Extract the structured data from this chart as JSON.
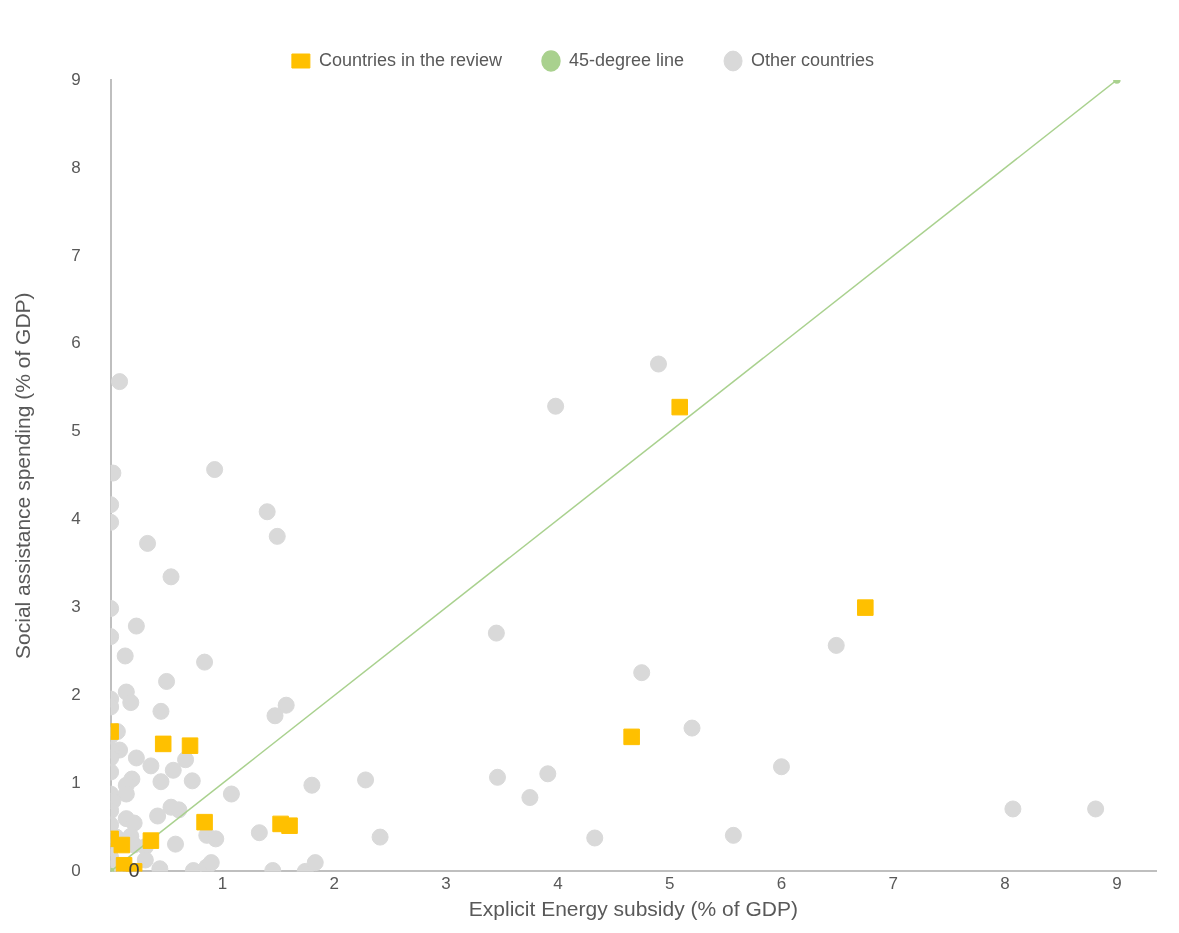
{
  "chart_data": {
    "type": "scatter",
    "xlabel": "Explicit Energy subsidy (% of GDP)",
    "ylabel": "Social assistance spending (% of GDP)",
    "xlim": [
      0,
      9.35
    ],
    "ylim": [
      0,
      9
    ],
    "xticks": [
      1,
      2,
      3,
      4,
      5,
      6,
      7,
      8,
      9
    ],
    "yticks": [
      0,
      1,
      2,
      3,
      4,
      5,
      6,
      7,
      8,
      9
    ],
    "grid": false,
    "legend": "top",
    "annotations": [
      {
        "text": "0",
        "x": 0.21,
        "y": 0
      }
    ],
    "series": [
      {
        "name": "Countries in the review",
        "type": "scatter",
        "marker": "square",
        "color": "#ffc000",
        "x": [
          5.09,
          6.75,
          4.66,
          0.47,
          0.71,
          0.84,
          1.52,
          1.6,
          0.36,
          0,
          0,
          0.1,
          0.21,
          0.12
        ],
        "values": [
          5.28,
          3.0,
          1.53,
          1.45,
          1.43,
          0.56,
          0.54,
          0.52,
          0.35,
          1.59,
          0.37,
          0.3,
          0.0,
          0.07
        ]
      },
      {
        "name": "45-degree line",
        "type": "line",
        "marker": "circle",
        "line_style": "solid",
        "color": "#a9d18e",
        "x": [
          0,
          9
        ],
        "values": [
          0,
          9
        ]
      },
      {
        "name": "Other countries",
        "type": "scatter",
        "marker": "circle",
        "color": "#d9d9d9",
        "x": [
          0.08,
          0.02,
          0,
          0,
          0.33,
          0.54,
          0.93,
          1.4,
          1.49,
          0,
          0,
          0.23,
          0.13,
          0.84,
          0.5,
          0.14,
          0.18,
          0,
          0,
          0.45,
          1.57,
          1.47,
          0.06,
          0,
          0.08,
          0,
          0,
          0,
          0.23,
          0.36,
          0.45,
          0.73,
          0.67,
          0.56,
          0.19,
          0.14,
          0.14,
          0,
          0.02,
          0,
          1.08,
          1.8,
          0.54,
          0.61,
          0.42,
          0.14,
          0.21,
          0,
          0.05,
          0.18,
          0.21,
          0.31,
          0.58,
          0.86,
          0.94,
          1.33,
          0.31,
          0,
          0,
          0.06,
          0.44,
          0.74,
          0.86,
          0.9,
          1.45,
          1.74,
          1.83,
          3.98,
          4.9,
          3.45,
          3.46,
          3.91,
          3.75,
          2.28,
          2.41,
          4.75,
          4.33,
          5.2,
          5.57,
          6.0,
          6.49,
          8.07,
          8.81
        ],
        "values": [
          5.57,
          4.53,
          4.17,
          3.97,
          3.73,
          3.35,
          4.57,
          4.09,
          3.81,
          2.99,
          2.67,
          2.79,
          2.45,
          2.38,
          2.16,
          2.04,
          1.92,
          1.96,
          1.87,
          1.82,
          1.89,
          1.77,
          1.59,
          1.54,
          1.38,
          1.38,
          1.29,
          1.13,
          1.29,
          1.2,
          1.02,
          1.03,
          1.27,
          1.15,
          1.05,
          0.98,
          0.88,
          0.88,
          0.8,
          0.69,
          0.88,
          0.98,
          0.73,
          0.7,
          0.63,
          0.6,
          0.55,
          0.53,
          0.39,
          0.4,
          0.3,
          0.28,
          0.31,
          0.41,
          0.37,
          0.44,
          0.13,
          0.27,
          0.16,
          0.07,
          0.03,
          0.01,
          0.05,
          0.1,
          0.01,
          0.0,
          0.1,
          5.29,
          5.77,
          2.71,
          1.07,
          1.11,
          0.84,
          1.04,
          0.39,
          2.26,
          0.38,
          1.63,
          0.41,
          1.19,
          2.57,
          0.71,
          0.71
        ]
      }
    ]
  }
}
